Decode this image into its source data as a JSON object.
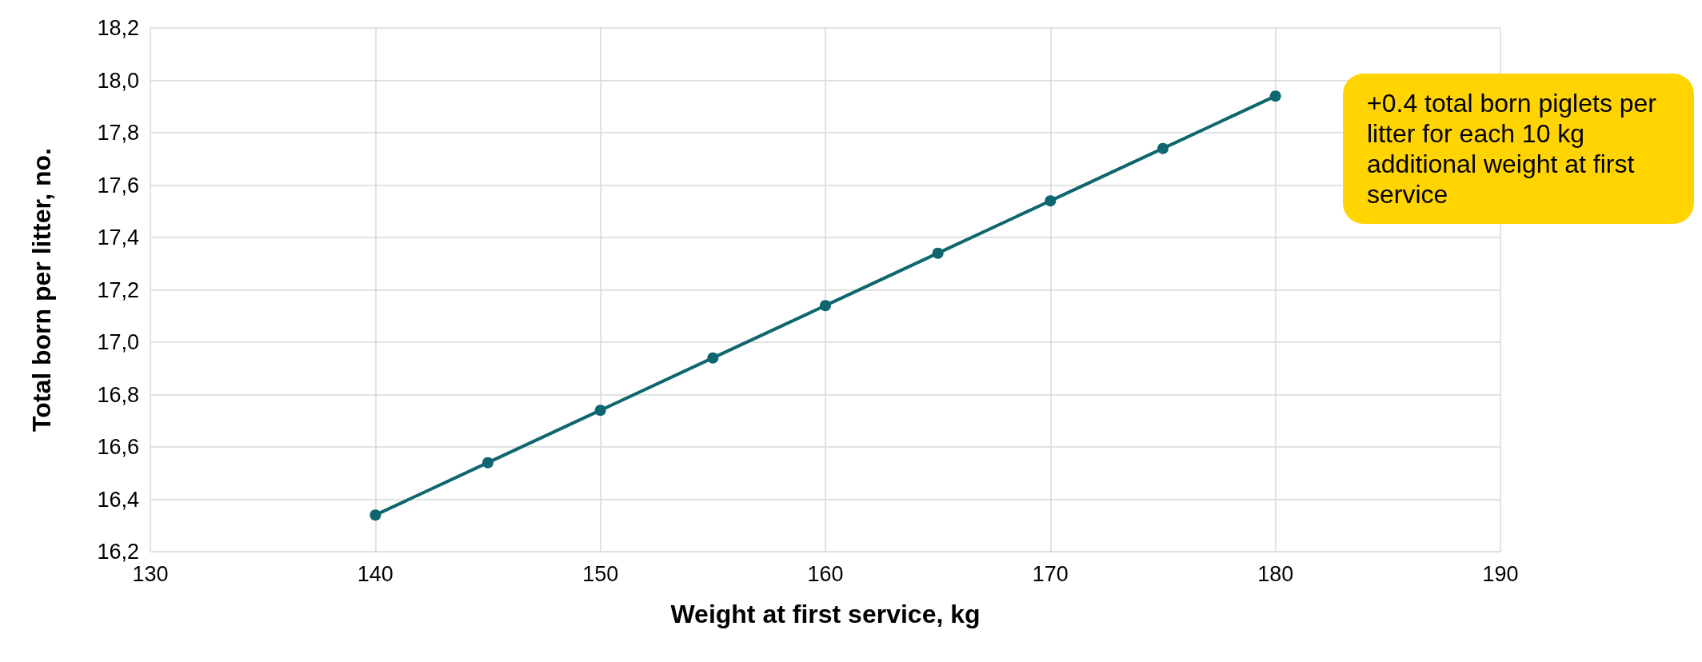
{
  "chart_data": {
    "type": "line",
    "xlabel": "Weight at first service, kg",
    "ylabel": "Total born per litter, no.",
    "x": [
      140,
      145,
      150,
      155,
      160,
      165,
      170,
      175,
      180
    ],
    "series": [
      {
        "color": "#0e6670",
        "values": [
          16.34,
          16.54,
          16.74,
          16.94,
          17.14,
          17.34,
          17.54,
          17.74,
          17.94
        ]
      }
    ],
    "xlim": [
      130,
      190
    ],
    "xticks": [
      130,
      140,
      150,
      160,
      170,
      180,
      190
    ],
    "ylim": [
      16.2,
      18.2
    ],
    "yticks": [
      {
        "value": 16.2,
        "label": "16,2"
      },
      {
        "value": 16.4,
        "label": "16,4"
      },
      {
        "value": 16.6,
        "label": "16,6"
      },
      {
        "value": 16.8,
        "label": "16,8"
      },
      {
        "value": 17.0,
        "label": "17,0"
      },
      {
        "value": 17.2,
        "label": "17,2"
      },
      {
        "value": 17.4,
        "label": "17,4"
      },
      {
        "value": 17.6,
        "label": "17,6"
      },
      {
        "value": 17.8,
        "label": "17,8"
      },
      {
        "value": 18.0,
        "label": "18,0"
      },
      {
        "value": 18.2,
        "label": "18,2"
      }
    ],
    "annotations": [
      "+0.4 total born piglets per litter for each 10 kg additional weight at first service"
    ],
    "grid": true,
    "marker": "circle",
    "line_style": "solid"
  }
}
